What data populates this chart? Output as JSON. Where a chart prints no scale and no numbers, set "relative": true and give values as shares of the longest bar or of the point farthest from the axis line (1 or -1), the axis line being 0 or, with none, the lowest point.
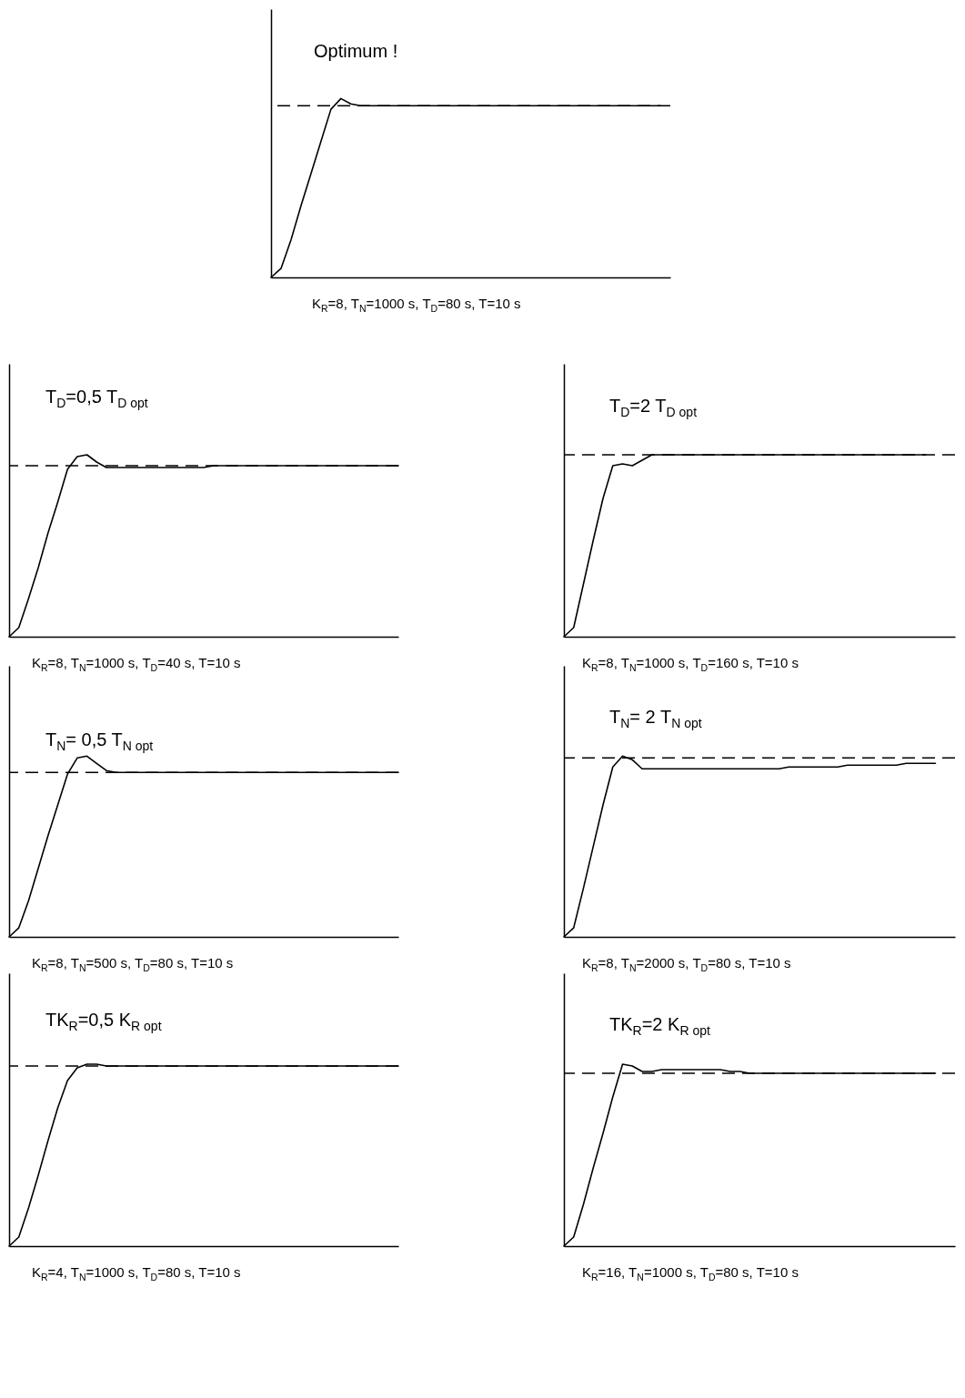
{
  "chart_data": [
    {
      "type": "line",
      "title": "Optimum !",
      "xlabel": "K$_{R}$=8, T$_{N}$=1000 s, T$_{D}$=80 s, T=10 s",
      "relative": true,
      "tick_labels": false,
      "categories": [
        null,
        null,
        null,
        null,
        null,
        null,
        null,
        null,
        null,
        null,
        null,
        null,
        null,
        null,
        null,
        null,
        null,
        null,
        null,
        null,
        null,
        null,
        null,
        null,
        null,
        null,
        null,
        null,
        null,
        null,
        null,
        null,
        null,
        null,
        null,
        null,
        null,
        null,
        null,
        null,
        null
      ],
      "series": [
        {
          "color": "#000000",
          "values": [
            0,
            0.05,
            0.21,
            0.4,
            0.58,
            0.76,
            0.94,
            1.0,
            0.97,
            0.96,
            0.96,
            0.96,
            0.96,
            0.96,
            0.96,
            0.96,
            0.96,
            0.96,
            0.96,
            0.96,
            0.96,
            0.96,
            0.96,
            0.96,
            0.96,
            0.96,
            0.96,
            0.96,
            0.96,
            0.96,
            0.96,
            0.96,
            0.96,
            0.96,
            0.96,
            0.96,
            0.96,
            0.96,
            0.96,
            0.96,
            null
          ]
        }
      ],
      "ref_lines": [
        {
          "axis": "y",
          "value": 0.96,
          "line_style": "dashed"
        }
      ]
    },
    {
      "type": "line",
      "title": "T$_{D}$=0,5 T$_{D opt}$",
      "xlabel": "K$_{R}$=8, T$_{N}$=1000 s, T$_{D}$=40 s, T=10 s",
      "relative": true,
      "tick_labels": false,
      "categories": [
        null,
        null,
        null,
        null,
        null,
        null,
        null,
        null,
        null,
        null,
        null,
        null,
        null,
        null,
        null,
        null,
        null,
        null,
        null,
        null,
        null,
        null,
        null,
        null,
        null,
        null,
        null,
        null,
        null,
        null,
        null,
        null,
        null,
        null,
        null,
        null,
        null,
        null,
        null,
        null,
        null
      ],
      "series": [
        {
          "color": "#000000",
          "values": [
            0,
            0.05,
            0.21,
            0.38,
            0.57,
            0.74,
            0.92,
            0.99,
            1.0,
            0.96,
            0.93,
            0.93,
            0.93,
            0.93,
            0.93,
            0.93,
            0.93,
            0.93,
            0.93,
            0.93,
            0.93,
            0.94,
            0.94,
            0.94,
            0.94,
            0.94,
            0.94,
            0.94,
            0.94,
            0.94,
            0.94,
            0.94,
            0.94,
            0.94,
            0.94,
            0.94,
            0.94,
            0.94,
            0.94,
            0.94,
            0.94
          ]
        }
      ],
      "ref_lines": [
        {
          "axis": "y",
          "value": 0.94,
          "line_style": "dashed"
        }
      ]
    },
    {
      "type": "line",
      "title": "T$_{D}$=2 T$_{D opt}$",
      "xlabel": "K$_{R}$=8, T$_{N}$=1000 s, T$_{D}$=160 s, T=10 s",
      "relative": true,
      "tick_labels": false,
      "categories": [
        null,
        null,
        null,
        null,
        null,
        null,
        null,
        null,
        null,
        null,
        null,
        null,
        null,
        null,
        null,
        null,
        null,
        null,
        null,
        null,
        null,
        null,
        null,
        null,
        null,
        null,
        null,
        null,
        null,
        null,
        null,
        null,
        null,
        null,
        null,
        null,
        null,
        null,
        null,
        null,
        null
      ],
      "series": [
        {
          "color": "#000000",
          "values": [
            0,
            0.05,
            0.29,
            0.53,
            0.76,
            0.94,
            0.95,
            0.94,
            0.97,
            1.0,
            1.0,
            1.0,
            1.0,
            1.0,
            1.0,
            1.0,
            1.0,
            1.0,
            1.0,
            1.0,
            1.0,
            1.0,
            1.0,
            1.0,
            1.0,
            1.0,
            1.0,
            1.0,
            1.0,
            1.0,
            1.0,
            1.0,
            1.0,
            1.0,
            1.0,
            1.0,
            1.0,
            1.0,
            null,
            null,
            null
          ]
        }
      ],
      "ref_lines": [
        {
          "axis": "y",
          "value": 1.0,
          "line_style": "dashed"
        }
      ]
    },
    {
      "type": "line",
      "title": "T$_{N}$= 0,5 T$_{N opt}$",
      "xlabel": "K$_{R}$=8, T$_{N}$=500 s, T$_{D}$=80 s, T=10 s",
      "relative": true,
      "tick_labels": false,
      "categories": [
        null,
        null,
        null,
        null,
        null,
        null,
        null,
        null,
        null,
        null,
        null,
        null,
        null,
        null,
        null,
        null,
        null,
        null,
        null,
        null,
        null,
        null,
        null,
        null,
        null,
        null,
        null,
        null,
        null,
        null,
        null,
        null,
        null,
        null,
        null,
        null,
        null,
        null,
        null,
        null,
        null
      ],
      "series": [
        {
          "color": "#000000",
          "values": [
            0,
            0.05,
            0.2,
            0.38,
            0.56,
            0.73,
            0.9,
            0.99,
            1.0,
            0.96,
            0.92,
            0.91,
            0.91,
            0.91,
            0.91,
            0.91,
            0.91,
            0.91,
            0.91,
            0.91,
            0.91,
            0.91,
            0.91,
            0.91,
            0.91,
            0.91,
            0.91,
            0.91,
            0.91,
            0.91,
            0.91,
            0.91,
            0.91,
            0.91,
            0.91,
            0.91,
            0.91,
            0.91,
            0.91,
            0.91,
            0.91
          ]
        }
      ],
      "ref_lines": [
        {
          "axis": "y",
          "value": 0.91,
          "line_style": "dashed"
        }
      ]
    },
    {
      "type": "line",
      "title": "T$_{N}$= 2 T$_{N opt}$",
      "xlabel": "K$_{R}$=8, T$_{N}$=2000 s, T$_{D}$=80 s, T=10 s",
      "relative": true,
      "tick_labels": false,
      "categories": [
        null,
        null,
        null,
        null,
        null,
        null,
        null,
        null,
        null,
        null,
        null,
        null,
        null,
        null,
        null,
        null,
        null,
        null,
        null,
        null,
        null,
        null,
        null,
        null,
        null,
        null,
        null,
        null,
        null,
        null,
        null,
        null,
        null,
        null,
        null,
        null,
        null,
        null,
        null,
        null,
        null
      ],
      "series": [
        {
          "color": "#000000",
          "values": [
            0,
            0.05,
            0.27,
            0.5,
            0.73,
            0.94,
            1.0,
            0.98,
            0.93,
            0.93,
            0.93,
            0.93,
            0.93,
            0.93,
            0.93,
            0.93,
            0.93,
            0.93,
            0.93,
            0.93,
            0.93,
            0.93,
            0.93,
            0.94,
            0.94,
            0.94,
            0.94,
            0.94,
            0.94,
            0.95,
            0.95,
            0.95,
            0.95,
            0.95,
            0.95,
            0.96,
            0.96,
            0.96,
            0.96,
            null,
            null
          ]
        }
      ],
      "ref_lines": [
        {
          "axis": "y",
          "value": 0.99,
          "line_style": "dashed"
        }
      ]
    },
    {
      "type": "line",
      "title": "TK$_{R}$=0,5 K$_{R opt}$",
      "xlabel": "K$_{R}$=4, T$_{N}$=1000 s, T$_{D}$=80 s, T=10 s",
      "relative": true,
      "tick_labels": false,
      "categories": [
        null,
        null,
        null,
        null,
        null,
        null,
        null,
        null,
        null,
        null,
        null,
        null,
        null,
        null,
        null,
        null,
        null,
        null,
        null,
        null,
        null,
        null,
        null,
        null,
        null,
        null,
        null,
        null,
        null,
        null,
        null,
        null,
        null,
        null,
        null,
        null,
        null,
        null,
        null,
        null,
        null
      ],
      "series": [
        {
          "color": "#000000",
          "values": [
            0,
            0.05,
            0.21,
            0.39,
            0.58,
            0.76,
            0.91,
            0.98,
            1.0,
            1.0,
            0.99,
            0.99,
            0.99,
            0.99,
            0.99,
            0.99,
            0.99,
            0.99,
            0.99,
            0.99,
            0.99,
            0.99,
            0.99,
            0.99,
            0.99,
            0.99,
            0.99,
            0.99,
            0.99,
            0.99,
            0.99,
            0.99,
            0.99,
            0.99,
            0.99,
            0.99,
            0.99,
            0.99,
            0.99,
            0.99,
            0.99
          ]
        }
      ],
      "ref_lines": [
        {
          "axis": "y",
          "value": 0.99,
          "line_style": "dashed"
        }
      ]
    },
    {
      "type": "line",
      "title": "TK$_{R}$=2 K$_{R opt}$",
      "xlabel": "K$_{R}$=16, T$_{N}$=1000 s, T$_{D}$=80 s, T=10 s",
      "relative": true,
      "tick_labels": false,
      "categories": [
        null,
        null,
        null,
        null,
        null,
        null,
        null,
        null,
        null,
        null,
        null,
        null,
        null,
        null,
        null,
        null,
        null,
        null,
        null,
        null,
        null,
        null,
        null,
        null,
        null,
        null,
        null,
        null,
        null,
        null,
        null,
        null,
        null,
        null,
        null,
        null,
        null,
        null,
        null,
        null,
        null
      ],
      "series": [
        {
          "color": "#000000",
          "values": [
            0,
            0.05,
            0.23,
            0.43,
            0.62,
            0.82,
            1.0,
            0.99,
            0.96,
            0.96,
            0.97,
            0.97,
            0.97,
            0.97,
            0.97,
            0.97,
            0.97,
            0.96,
            0.96,
            0.95,
            0.95,
            0.95,
            0.95,
            0.95,
            0.95,
            0.95,
            0.95,
            0.95,
            0.95,
            0.95,
            0.95,
            0.95,
            0.95,
            0.95,
            0.95,
            0.95,
            0.95,
            0.95,
            0.95,
            null,
            null
          ]
        }
      ],
      "ref_lines": [
        {
          "axis": "y",
          "value": 0.95,
          "line_style": "dashed"
        }
      ]
    }
  ]
}
